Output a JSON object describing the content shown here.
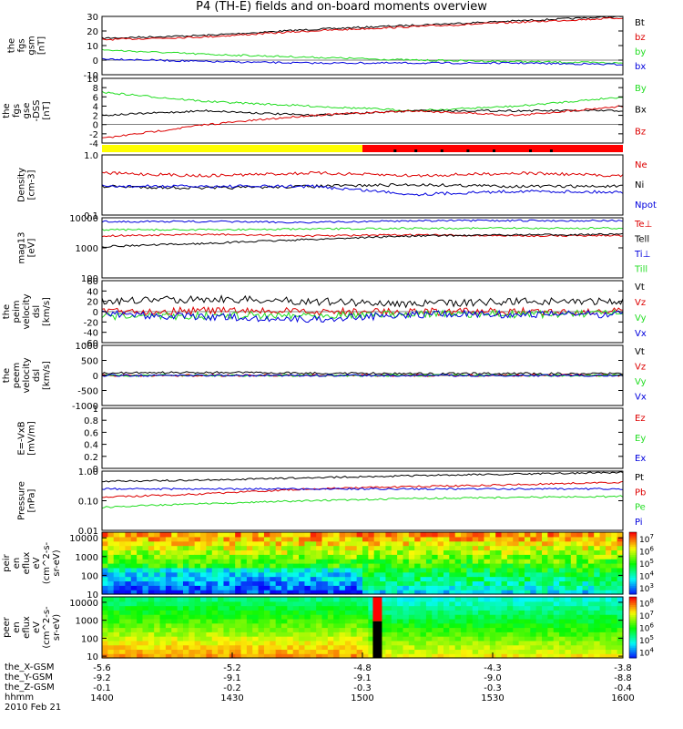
{
  "title": "P4 (TH-E) fields and on-board moments overview",
  "colors": {
    "black": "#000000",
    "red": "#dd0000",
    "green": "#22dd22",
    "blue": "#0000dd",
    "yellow": "#ffff00",
    "barred": "#ff0000"
  },
  "chart_data": [
    {
      "type": "line",
      "ylabel": [
        "the",
        "fgs",
        "gsm",
        "[nT]"
      ],
      "ylim": [
        -10,
        30
      ],
      "yticks": [
        -10,
        0,
        10,
        20,
        30
      ],
      "series": [
        {
          "name": "Bt",
          "color": "black",
          "levels": [
            15,
            17,
            21,
            24,
            27,
            30
          ]
        },
        {
          "name": "bz",
          "color": "red",
          "levels": [
            14,
            16,
            20,
            23,
            26,
            29
          ]
        },
        {
          "name": "by",
          "color": "green",
          "levels": [
            7,
            4,
            2,
            0,
            -1,
            -2
          ]
        },
        {
          "name": "bx",
          "color": "blue",
          "levels": [
            1,
            -1,
            -2,
            -2,
            -2,
            -3
          ]
        }
      ]
    },
    {
      "type": "line",
      "ylabel": [
        "the",
        "fgs",
        "gse",
        "-DSS",
        "[nT]"
      ],
      "ylim": [
        -4,
        10
      ],
      "yticks": [
        -4,
        -2,
        0,
        2,
        4,
        6,
        8,
        10
      ],
      "series": [
        {
          "name": "By",
          "color": "green",
          "levels": [
            7,
            5,
            4,
            3,
            4,
            6
          ]
        },
        {
          "name": "Bx",
          "color": "black",
          "levels": [
            2,
            3,
            2,
            3,
            3,
            3
          ]
        },
        {
          "name": "Bz",
          "color": "red",
          "levels": [
            -3,
            0,
            2,
            3,
            2,
            4
          ]
        }
      ]
    },
    {
      "type": "bar",
      "name": "mode-bar",
      "segments": [
        {
          "from": 0,
          "to": 0.5,
          "color": "yellow"
        },
        {
          "from": 0.5,
          "to": 1,
          "color": "barred"
        }
      ]
    },
    {
      "type": "line",
      "ylabel": [
        "Density",
        "[cm-3]"
      ],
      "log": true,
      "ylim": [
        0.1,
        1.0
      ],
      "ytick_labels": [
        "0.1",
        "1.0"
      ],
      "series": [
        {
          "name": "Ne",
          "color": "red",
          "levels": [
            0.5,
            0.45,
            0.5,
            0.45,
            0.5,
            0.45
          ]
        },
        {
          "name": "Ni",
          "color": "black",
          "levels": [
            0.3,
            0.28,
            0.3,
            0.32,
            0.3,
            0.3
          ]
        },
        {
          "name": "Npot",
          "color": "blue",
          "levels": [
            0.3,
            0.3,
            0.3,
            0.22,
            0.25,
            0.24
          ]
        }
      ]
    },
    {
      "type": "line",
      "ylabel": [
        "mag13",
        "[eV]"
      ],
      "log": true,
      "ylim": [
        100,
        10000
      ],
      "ytick_labels": [
        "100",
        "1000",
        "10000"
      ],
      "series": [
        {
          "name": "Te⊥",
          "color": "red",
          "levels": [
            2500,
            2800,
            2500,
            2700,
            2500,
            2600
          ]
        },
        {
          "name": "Tell",
          "color": "black",
          "levels": [
            1100,
            1400,
            1900,
            2500,
            2700,
            2800
          ]
        },
        {
          "name": "Ti⊥",
          "color": "blue",
          "levels": [
            7500,
            7500,
            7000,
            8000,
            8000,
            8000
          ]
        },
        {
          "name": "Till",
          "color": "green",
          "levels": [
            4000,
            4000,
            4200,
            4500,
            4500,
            4500
          ]
        }
      ]
    },
    {
      "type": "line",
      "ylabel": [
        "the",
        "peim",
        "velocity",
        "dsl",
        "[km/s]"
      ],
      "ylim": [
        -60,
        60
      ],
      "yticks": [
        -60,
        -40,
        -20,
        0,
        20,
        40,
        60
      ],
      "series": [
        {
          "name": "Vt",
          "color": "black",
          "levels": [
            20,
            25,
            20,
            15,
            20,
            20
          ]
        },
        {
          "name": "Vz",
          "color": "red",
          "levels": [
            0,
            2,
            0,
            0,
            0,
            0
          ]
        },
        {
          "name": "Vy",
          "color": "green",
          "levels": [
            -10,
            -8,
            -6,
            -5,
            -5,
            -4
          ]
        },
        {
          "name": "Vx",
          "color": "blue",
          "levels": [
            -5,
            -10,
            -15,
            -5,
            -5,
            -5
          ]
        }
      ]
    },
    {
      "type": "line",
      "ylabel": [
        "the",
        "peem",
        "velocity",
        "dsl",
        "[km/s]"
      ],
      "ylim": [
        -1000,
        1000
      ],
      "yticks": [
        -1000,
        -500,
        0,
        500,
        1000
      ],
      "series": [
        {
          "name": "Vt",
          "color": "black",
          "levels": [
            80,
            100,
            80,
            60,
            60,
            60
          ]
        },
        {
          "name": "Vz",
          "color": "red",
          "levels": [
            0,
            0,
            0,
            0,
            0,
            0
          ]
        },
        {
          "name": "Vy",
          "color": "green",
          "levels": [
            0,
            0,
            0,
            0,
            0,
            0
          ]
        },
        {
          "name": "Vx",
          "color": "blue",
          "levels": [
            0,
            0,
            0,
            0,
            0,
            0
          ]
        }
      ]
    },
    {
      "type": "line",
      "ylabel": [
        "E=-VxB",
        "[mV/m]"
      ],
      "ylim": [
        0,
        1.0
      ],
      "yticks": [
        0,
        0.2,
        0.4,
        0.6,
        0.8,
        1.0
      ],
      "series": [
        {
          "name": "Ez",
          "color": "red",
          "levels": []
        },
        {
          "name": "Ey",
          "color": "green",
          "levels": []
        },
        {
          "name": "Ex",
          "color": "blue",
          "levels": []
        }
      ]
    },
    {
      "type": "line",
      "ylabel": [
        "Pressure",
        "[nPa]"
      ],
      "log": true,
      "ylim": [
        0.01,
        1.0
      ],
      "ytick_labels": [
        "0.01",
        "0.10",
        "1.00"
      ],
      "series": [
        {
          "name": "Pt",
          "color": "black",
          "levels": [
            0.45,
            0.5,
            0.6,
            0.7,
            0.8,
            0.9
          ]
        },
        {
          "name": "Pb",
          "color": "red",
          "levels": [
            0.13,
            0.17,
            0.25,
            0.3,
            0.35,
            0.42
          ]
        },
        {
          "name": "Pe",
          "color": "green",
          "levels": [
            0.06,
            0.08,
            0.1,
            0.12,
            0.13,
            0.14
          ]
        },
        {
          "name": "Pi",
          "color": "blue",
          "levels": [
            0.25,
            0.25,
            0.25,
            0.25,
            0.25,
            0.25
          ]
        }
      ]
    },
    {
      "type": "heatmap",
      "ylabel": [
        "the",
        "peir",
        "en",
        "eflux",
        "eV",
        "(cm^2-s-",
        "sr-eV)"
      ],
      "log": true,
      "ylim": [
        10,
        20000
      ],
      "ytick_labels": [
        "10",
        "100",
        "1000",
        "10000"
      ],
      "colorbar": [
        "10",
        "10",
        "10",
        "10",
        "10"
      ],
      "colorbar_exp": [
        "3",
        "4",
        "5",
        "6",
        "7"
      ]
    },
    {
      "type": "heatmap",
      "ylabel": [
        "the",
        "peer",
        "en",
        "eflux",
        "eV",
        "(cm^2-s-",
        "sr-eV)"
      ],
      "log": true,
      "ylim": [
        8,
        20000
      ],
      "ytick_labels": [
        "10",
        "100",
        "1000",
        "10000"
      ],
      "colorbar": [
        "10",
        "10",
        "10",
        "10",
        "10"
      ],
      "colorbar_exp": [
        "4",
        "5",
        "6",
        "7",
        "8"
      ]
    }
  ],
  "x_axis": {
    "rows": [
      {
        "label": "the_X-GSM",
        "values": [
          "-5.6",
          "-5.2",
          "-4.8",
          "-4.3",
          "-3.8"
        ]
      },
      {
        "label": "the_Y-GSM",
        "values": [
          "-9.2",
          "-9.1",
          "-9.1",
          "-9.0",
          "-8.8"
        ]
      },
      {
        "label": "the_Z-GSM",
        "values": [
          "-0.1",
          "-0.2",
          "-0.3",
          "-0.3",
          "-0.4"
        ]
      },
      {
        "label": "hhmm",
        "values": [
          "1400",
          "1430",
          "1500",
          "1530",
          "1600"
        ]
      }
    ],
    "date": "2010 Feb 21"
  }
}
